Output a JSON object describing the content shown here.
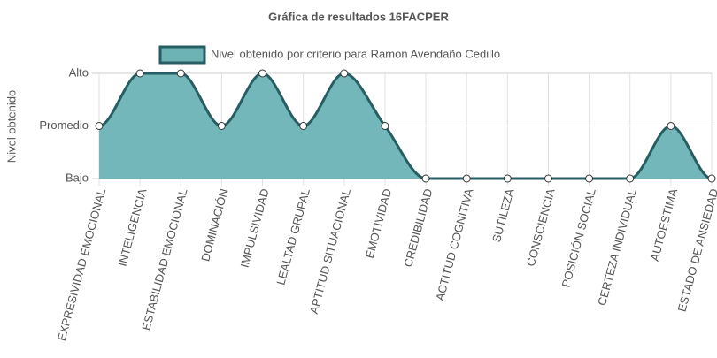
{
  "chart_data": {
    "type": "area",
    "title": "Gráfica de resultados 16FACPER",
    "y_label": "Nivel obtenido",
    "categories": [
      "EXPRESIVIDAD EMOCIONAL",
      "INTELIGENCIA",
      "ESTABILIDAD EMOCIONAL",
      "DOMINACIÓN",
      "IMPULSIVIDAD",
      "LEALTAD GRUPAL",
      "APTITUD SITUACIONAL",
      "EMOTIVIDAD",
      "CREDIBILIDAD",
      "ACTITUD COGNITIVA",
      "SUTILEZA",
      "CONSCIENCIA",
      "POSICIÓN SOCIAL",
      "CERTEZA INDIVIDUAL",
      "AUTOESTIMA",
      "ESTADO DE ANSIEDAD"
    ],
    "series": [
      {
        "name": "Nivel obtenido por criterio para Ramon Avendaño Cedillo",
        "color": "#265e63",
        "fill": "#6db3b6",
        "values": [
          1,
          2,
          2,
          1,
          2,
          1,
          2,
          1,
          0,
          0,
          0,
          0,
          0,
          0,
          1,
          0
        ]
      }
    ],
    "ylim": [
      0,
      2
    ],
    "yticks": [
      {
        "value": 0,
        "label": "Bajo"
      },
      {
        "value": 1,
        "label": "Promedio"
      },
      {
        "value": 2,
        "label": "Alto"
      }
    ],
    "grid": true,
    "legend": "top"
  }
}
